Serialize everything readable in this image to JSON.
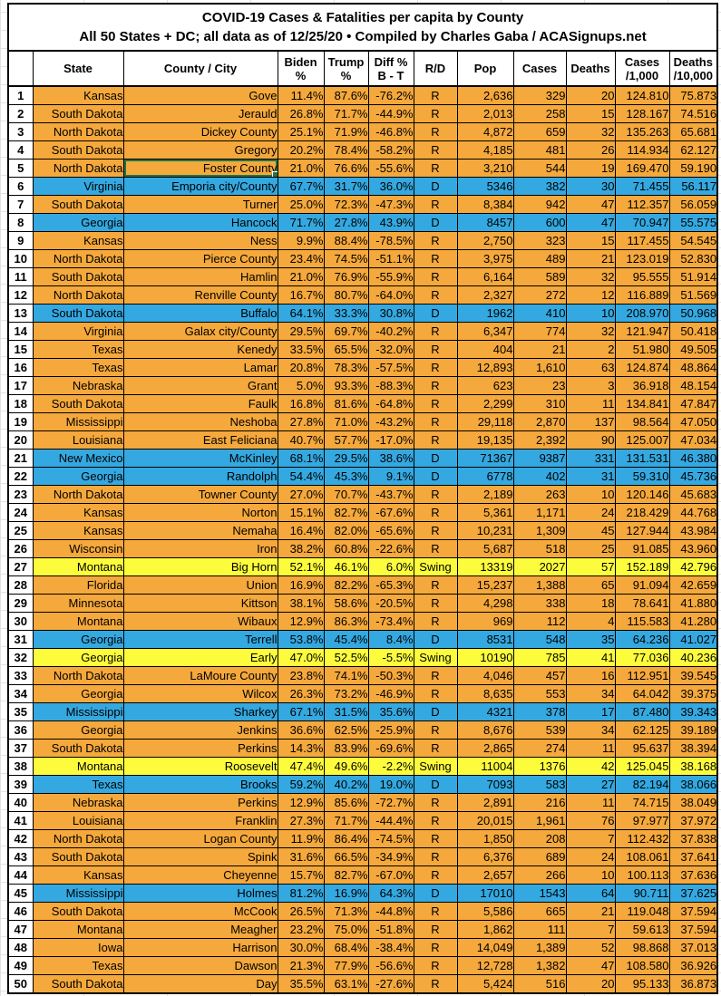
{
  "title": {
    "line1": "COVID-19 Cases & Fatalities per capita by County",
    "line2": "All 50 States + DC; all data as of 12/25/20  • Compiled by Charles Gaba / ACASignups.net"
  },
  "party_colors": {
    "R": "#F5A83B",
    "D": "#34A8E0",
    "Swing": "#FCFC3C"
  },
  "selection": {
    "row_rank": "5",
    "column": "county",
    "border_color": "#217346"
  },
  "columns": [
    {
      "id": "rank",
      "lines": [
        ""
      ]
    },
    {
      "id": "state",
      "lines": [
        "State"
      ]
    },
    {
      "id": "county",
      "lines": [
        "County / City"
      ]
    },
    {
      "id": "biden",
      "lines": [
        "Biden",
        "%"
      ]
    },
    {
      "id": "trump",
      "lines": [
        "Trump",
        "%"
      ]
    },
    {
      "id": "diff",
      "lines": [
        "Diff %",
        "B - T"
      ]
    },
    {
      "id": "rd",
      "lines": [
        "R/D"
      ]
    },
    {
      "id": "pop",
      "lines": [
        "Pop"
      ]
    },
    {
      "id": "cases",
      "lines": [
        "Cases"
      ]
    },
    {
      "id": "deaths",
      "lines": [
        "Deaths"
      ]
    },
    {
      "id": "cases_per_1000",
      "lines": [
        "Cases",
        "/1,000"
      ]
    },
    {
      "id": "deaths_per_10000",
      "lines": [
        "Deaths",
        "/10,000"
      ]
    }
  ],
  "rows": [
    {
      "rank": "1",
      "state": "Kansas",
      "county": "Gove",
      "biden": "11.4%",
      "trump": "87.6%",
      "diff": "-76.2%",
      "rd": "R",
      "pop": "2,636",
      "cases": "329",
      "deaths": "20",
      "cases_per_1000": "124.810",
      "deaths_per_10000": "75.873"
    },
    {
      "rank": "2",
      "state": "South Dakota",
      "county": "Jerauld",
      "biden": "26.8%",
      "trump": "71.7%",
      "diff": "-44.9%",
      "rd": "R",
      "pop": "2,013",
      "cases": "258",
      "deaths": "15",
      "cases_per_1000": "128.167",
      "deaths_per_10000": "74.516"
    },
    {
      "rank": "3",
      "state": "North Dakota",
      "county": "Dickey County",
      "biden": "25.1%",
      "trump": "71.9%",
      "diff": "-46.8%",
      "rd": "R",
      "pop": "4,872",
      "cases": "659",
      "deaths": "32",
      "cases_per_1000": "135.263",
      "deaths_per_10000": "65.681"
    },
    {
      "rank": "4",
      "state": "South Dakota",
      "county": "Gregory",
      "biden": "20.2%",
      "trump": "78.4%",
      "diff": "-58.2%",
      "rd": "R",
      "pop": "4,185",
      "cases": "481",
      "deaths": "26",
      "cases_per_1000": "114.934",
      "deaths_per_10000": "62.127"
    },
    {
      "rank": "5",
      "state": "North Dakota",
      "county": "Foster County",
      "biden": "21.0%",
      "trump": "76.6%",
      "diff": "-55.6%",
      "rd": "R",
      "pop": "3,210",
      "cases": "544",
      "deaths": "19",
      "cases_per_1000": "169.470",
      "deaths_per_10000": "59.190"
    },
    {
      "rank": "6",
      "state": "Virginia",
      "county": "Emporia city/County",
      "biden": "67.7%",
      "trump": "31.7%",
      "diff": "36.0%",
      "rd": "D",
      "pop": "5346",
      "cases": "382",
      "deaths": "30",
      "cases_per_1000": "71.455",
      "deaths_per_10000": "56.117"
    },
    {
      "rank": "7",
      "state": "South Dakota",
      "county": "Turner",
      "biden": "25.0%",
      "trump": "72.3%",
      "diff": "-47.3%",
      "rd": "R",
      "pop": "8,384",
      "cases": "942",
      "deaths": "47",
      "cases_per_1000": "112.357",
      "deaths_per_10000": "56.059"
    },
    {
      "rank": "8",
      "state": "Georgia",
      "county": "Hancock",
      "biden": "71.7%",
      "trump": "27.8%",
      "diff": "43.9%",
      "rd": "D",
      "pop": "8457",
      "cases": "600",
      "deaths": "47",
      "cases_per_1000": "70.947",
      "deaths_per_10000": "55.575"
    },
    {
      "rank": "9",
      "state": "Kansas",
      "county": "Ness",
      "biden": "9.9%",
      "trump": "88.4%",
      "diff": "-78.5%",
      "rd": "R",
      "pop": "2,750",
      "cases": "323",
      "deaths": "15",
      "cases_per_1000": "117.455",
      "deaths_per_10000": "54.545"
    },
    {
      "rank": "10",
      "state": "North Dakota",
      "county": "Pierce County",
      "biden": "23.4%",
      "trump": "74.5%",
      "diff": "-51.1%",
      "rd": "R",
      "pop": "3,975",
      "cases": "489",
      "deaths": "21",
      "cases_per_1000": "123.019",
      "deaths_per_10000": "52.830"
    },
    {
      "rank": "11",
      "state": "South Dakota",
      "county": "Hamlin",
      "biden": "21.0%",
      "trump": "76.9%",
      "diff": "-55.9%",
      "rd": "R",
      "pop": "6,164",
      "cases": "589",
      "deaths": "32",
      "cases_per_1000": "95.555",
      "deaths_per_10000": "51.914"
    },
    {
      "rank": "12",
      "state": "North Dakota",
      "county": "Renville County",
      "biden": "16.7%",
      "trump": "80.7%",
      "diff": "-64.0%",
      "rd": "R",
      "pop": "2,327",
      "cases": "272",
      "deaths": "12",
      "cases_per_1000": "116.889",
      "deaths_per_10000": "51.569"
    },
    {
      "rank": "13",
      "state": "South Dakota",
      "county": "Buffalo",
      "biden": "64.1%",
      "trump": "33.3%",
      "diff": "30.8%",
      "rd": "D",
      "pop": "1962",
      "cases": "410",
      "deaths": "10",
      "cases_per_1000": "208.970",
      "deaths_per_10000": "50.968"
    },
    {
      "rank": "14",
      "state": "Virginia",
      "county": "Galax city/County",
      "biden": "29.5%",
      "trump": "69.7%",
      "diff": "-40.2%",
      "rd": "R",
      "pop": "6,347",
      "cases": "774",
      "deaths": "32",
      "cases_per_1000": "121.947",
      "deaths_per_10000": "50.418"
    },
    {
      "rank": "15",
      "state": "Texas",
      "county": "Kenedy",
      "biden": "33.5%",
      "trump": "65.5%",
      "diff": "-32.0%",
      "rd": "R",
      "pop": "404",
      "cases": "21",
      "deaths": "2",
      "cases_per_1000": "51.980",
      "deaths_per_10000": "49.505"
    },
    {
      "rank": "16",
      "state": "Texas",
      "county": "Lamar",
      "biden": "20.8%",
      "trump": "78.3%",
      "diff": "-57.5%",
      "rd": "R",
      "pop": "12,893",
      "cases": "1,610",
      "deaths": "63",
      "cases_per_1000": "124.874",
      "deaths_per_10000": "48.864"
    },
    {
      "rank": "17",
      "state": "Nebraska",
      "county": "Grant",
      "biden": "5.0%",
      "trump": "93.3%",
      "diff": "-88.3%",
      "rd": "R",
      "pop": "623",
      "cases": "23",
      "deaths": "3",
      "cases_per_1000": "36.918",
      "deaths_per_10000": "48.154"
    },
    {
      "rank": "18",
      "state": "South Dakota",
      "county": "Faulk",
      "biden": "16.8%",
      "trump": "81.6%",
      "diff": "-64.8%",
      "rd": "R",
      "pop": "2,299",
      "cases": "310",
      "deaths": "11",
      "cases_per_1000": "134.841",
      "deaths_per_10000": "47.847"
    },
    {
      "rank": "19",
      "state": "Mississippi",
      "county": "Neshoba",
      "biden": "27.8%",
      "trump": "71.0%",
      "diff": "-43.2%",
      "rd": "R",
      "pop": "29,118",
      "cases": "2,870",
      "deaths": "137",
      "cases_per_1000": "98.564",
      "deaths_per_10000": "47.050"
    },
    {
      "rank": "20",
      "state": "Louisiana",
      "county": "East Feliciana",
      "biden": "40.7%",
      "trump": "57.7%",
      "diff": "-17.0%",
      "rd": "R",
      "pop": "19,135",
      "cases": "2,392",
      "deaths": "90",
      "cases_per_1000": "125.007",
      "deaths_per_10000": "47.034"
    },
    {
      "rank": "21",
      "state": "New Mexico",
      "county": "McKinley",
      "biden": "68.1%",
      "trump": "29.5%",
      "diff": "38.6%",
      "rd": "D",
      "pop": "71367",
      "cases": "9387",
      "deaths": "331",
      "cases_per_1000": "131.531",
      "deaths_per_10000": "46.380"
    },
    {
      "rank": "22",
      "state": "Georgia",
      "county": "Randolph",
      "biden": "54.4%",
      "trump": "45.3%",
      "diff": "9.1%",
      "rd": "D",
      "pop": "6778",
      "cases": "402",
      "deaths": "31",
      "cases_per_1000": "59.310",
      "deaths_per_10000": "45.736"
    },
    {
      "rank": "23",
      "state": "North Dakota",
      "county": "Towner County",
      "biden": "27.0%",
      "trump": "70.7%",
      "diff": "-43.7%",
      "rd": "R",
      "pop": "2,189",
      "cases": "263",
      "deaths": "10",
      "cases_per_1000": "120.146",
      "deaths_per_10000": "45.683"
    },
    {
      "rank": "24",
      "state": "Kansas",
      "county": "Norton",
      "biden": "15.1%",
      "trump": "82.7%",
      "diff": "-67.6%",
      "rd": "R",
      "pop": "5,361",
      "cases": "1,171",
      "deaths": "24",
      "cases_per_1000": "218.429",
      "deaths_per_10000": "44.768"
    },
    {
      "rank": "25",
      "state": "Kansas",
      "county": "Nemaha",
      "biden": "16.4%",
      "trump": "82.0%",
      "diff": "-65.6%",
      "rd": "R",
      "pop": "10,231",
      "cases": "1,309",
      "deaths": "45",
      "cases_per_1000": "127.944",
      "deaths_per_10000": "43.984"
    },
    {
      "rank": "26",
      "state": "Wisconsin",
      "county": "Iron",
      "biden": "38.2%",
      "trump": "60.8%",
      "diff": "-22.6%",
      "rd": "R",
      "pop": "5,687",
      "cases": "518",
      "deaths": "25",
      "cases_per_1000": "91.085",
      "deaths_per_10000": "43.960"
    },
    {
      "rank": "27",
      "state": "Montana",
      "county": "Big Horn",
      "biden": "52.1%",
      "trump": "46.1%",
      "diff": "6.0%",
      "rd": "Swing",
      "pop": "13319",
      "cases": "2027",
      "deaths": "57",
      "cases_per_1000": "152.189",
      "deaths_per_10000": "42.796"
    },
    {
      "rank": "28",
      "state": "Florida",
      "county": "Union",
      "biden": "16.9%",
      "trump": "82.2%",
      "diff": "-65.3%",
      "rd": "R",
      "pop": "15,237",
      "cases": "1,388",
      "deaths": "65",
      "cases_per_1000": "91.094",
      "deaths_per_10000": "42.659"
    },
    {
      "rank": "29",
      "state": "Minnesota",
      "county": "Kittson",
      "biden": "38.1%",
      "trump": "58.6%",
      "diff": "-20.5%",
      "rd": "R",
      "pop": "4,298",
      "cases": "338",
      "deaths": "18",
      "cases_per_1000": "78.641",
      "deaths_per_10000": "41.880"
    },
    {
      "rank": "30",
      "state": "Montana",
      "county": "Wibaux",
      "biden": "12.9%",
      "trump": "86.3%",
      "diff": "-73.4%",
      "rd": "R",
      "pop": "969",
      "cases": "112",
      "deaths": "4",
      "cases_per_1000": "115.583",
      "deaths_per_10000": "41.280"
    },
    {
      "rank": "31",
      "state": "Georgia",
      "county": "Terrell",
      "biden": "53.8%",
      "trump": "45.4%",
      "diff": "8.4%",
      "rd": "D",
      "pop": "8531",
      "cases": "548",
      "deaths": "35",
      "cases_per_1000": "64.236",
      "deaths_per_10000": "41.027"
    },
    {
      "rank": "32",
      "state": "Georgia",
      "county": "Early",
      "biden": "47.0%",
      "trump": "52.5%",
      "diff": "-5.5%",
      "rd": "Swing",
      "pop": "10190",
      "cases": "785",
      "deaths": "41",
      "cases_per_1000": "77.036",
      "deaths_per_10000": "40.236"
    },
    {
      "rank": "33",
      "state": "North Dakota",
      "county": "LaMoure County",
      "biden": "23.8%",
      "trump": "74.1%",
      "diff": "-50.3%",
      "rd": "R",
      "pop": "4,046",
      "cases": "457",
      "deaths": "16",
      "cases_per_1000": "112.951",
      "deaths_per_10000": "39.545"
    },
    {
      "rank": "34",
      "state": "Georgia",
      "county": "Wilcox",
      "biden": "26.3%",
      "trump": "73.2%",
      "diff": "-46.9%",
      "rd": "R",
      "pop": "8,635",
      "cases": "553",
      "deaths": "34",
      "cases_per_1000": "64.042",
      "deaths_per_10000": "39.375"
    },
    {
      "rank": "35",
      "state": "Mississippi",
      "county": "Sharkey",
      "biden": "67.1%",
      "trump": "31.5%",
      "diff": "35.6%",
      "rd": "D",
      "pop": "4321",
      "cases": "378",
      "deaths": "17",
      "cases_per_1000": "87.480",
      "deaths_per_10000": "39.343"
    },
    {
      "rank": "36",
      "state": "Georgia",
      "county": "Jenkins",
      "biden": "36.6%",
      "trump": "62.5%",
      "diff": "-25.9%",
      "rd": "R",
      "pop": "8,676",
      "cases": "539",
      "deaths": "34",
      "cases_per_1000": "62.125",
      "deaths_per_10000": "39.189"
    },
    {
      "rank": "37",
      "state": "South Dakota",
      "county": "Perkins",
      "biden": "14.3%",
      "trump": "83.9%",
      "diff": "-69.6%",
      "rd": "R",
      "pop": "2,865",
      "cases": "274",
      "deaths": "11",
      "cases_per_1000": "95.637",
      "deaths_per_10000": "38.394"
    },
    {
      "rank": "38",
      "state": "Montana",
      "county": "Roosevelt",
      "biden": "47.4%",
      "trump": "49.6%",
      "diff": "-2.2%",
      "rd": "Swing",
      "pop": "11004",
      "cases": "1376",
      "deaths": "42",
      "cases_per_1000": "125.045",
      "deaths_per_10000": "38.168"
    },
    {
      "rank": "39",
      "state": "Texas",
      "county": "Brooks",
      "biden": "59.2%",
      "trump": "40.2%",
      "diff": "19.0%",
      "rd": "D",
      "pop": "7093",
      "cases": "583",
      "deaths": "27",
      "cases_per_1000": "82.194",
      "deaths_per_10000": "38.066"
    },
    {
      "rank": "40",
      "state": "Nebraska",
      "county": "Perkins",
      "biden": "12.9%",
      "trump": "85.6%",
      "diff": "-72.7%",
      "rd": "R",
      "pop": "2,891",
      "cases": "216",
      "deaths": "11",
      "cases_per_1000": "74.715",
      "deaths_per_10000": "38.049"
    },
    {
      "rank": "41",
      "state": "Louisiana",
      "county": "Franklin",
      "biden": "27.3%",
      "trump": "71.7%",
      "diff": "-44.4%",
      "rd": "R",
      "pop": "20,015",
      "cases": "1,961",
      "deaths": "76",
      "cases_per_1000": "97.977",
      "deaths_per_10000": "37.972"
    },
    {
      "rank": "42",
      "state": "North Dakota",
      "county": "Logan County",
      "biden": "11.9%",
      "trump": "86.4%",
      "diff": "-74.5%",
      "rd": "R",
      "pop": "1,850",
      "cases": "208",
      "deaths": "7",
      "cases_per_1000": "112.432",
      "deaths_per_10000": "37.838"
    },
    {
      "rank": "43",
      "state": "South Dakota",
      "county": "Spink",
      "biden": "31.6%",
      "trump": "66.5%",
      "diff": "-34.9%",
      "rd": "R",
      "pop": "6,376",
      "cases": "689",
      "deaths": "24",
      "cases_per_1000": "108.061",
      "deaths_per_10000": "37.641"
    },
    {
      "rank": "44",
      "state": "Kansas",
      "county": "Cheyenne",
      "biden": "15.7%",
      "trump": "82.7%",
      "diff": "-67.0%",
      "rd": "R",
      "pop": "2,657",
      "cases": "266",
      "deaths": "10",
      "cases_per_1000": "100.113",
      "deaths_per_10000": "37.636"
    },
    {
      "rank": "45",
      "state": "Mississippi",
      "county": "Holmes",
      "biden": "81.2%",
      "trump": "16.9%",
      "diff": "64.3%",
      "rd": "D",
      "pop": "17010",
      "cases": "1543",
      "deaths": "64",
      "cases_per_1000": "90.711",
      "deaths_per_10000": "37.625"
    },
    {
      "rank": "46",
      "state": "South Dakota",
      "county": "McCook",
      "biden": "26.5%",
      "trump": "71.3%",
      "diff": "-44.8%",
      "rd": "R",
      "pop": "5,586",
      "cases": "665",
      "deaths": "21",
      "cases_per_1000": "119.048",
      "deaths_per_10000": "37.594"
    },
    {
      "rank": "47",
      "state": "Montana",
      "county": "Meagher",
      "biden": "23.2%",
      "trump": "75.0%",
      "diff": "-51.8%",
      "rd": "R",
      "pop": "1,862",
      "cases": "111",
      "deaths": "7",
      "cases_per_1000": "59.613",
      "deaths_per_10000": "37.594"
    },
    {
      "rank": "48",
      "state": "Iowa",
      "county": "Harrison",
      "biden": "30.0%",
      "trump": "68.4%",
      "diff": "-38.4%",
      "rd": "R",
      "pop": "14,049",
      "cases": "1,389",
      "deaths": "52",
      "cases_per_1000": "98.868",
      "deaths_per_10000": "37.013"
    },
    {
      "rank": "49",
      "state": "Texas",
      "county": "Dawson",
      "biden": "21.3%",
      "trump": "77.9%",
      "diff": "-56.6%",
      "rd": "R",
      "pop": "12,728",
      "cases": "1,382",
      "deaths": "47",
      "cases_per_1000": "108.580",
      "deaths_per_10000": "36.926"
    },
    {
      "rank": "50",
      "state": "South Dakota",
      "county": "Day",
      "biden": "35.5%",
      "trump": "63.1%",
      "diff": "-27.6%",
      "rd": "R",
      "pop": "5,424",
      "cases": "516",
      "deaths": "20",
      "cases_per_1000": "95.133",
      "deaths_per_10000": "36.873"
    }
  ]
}
